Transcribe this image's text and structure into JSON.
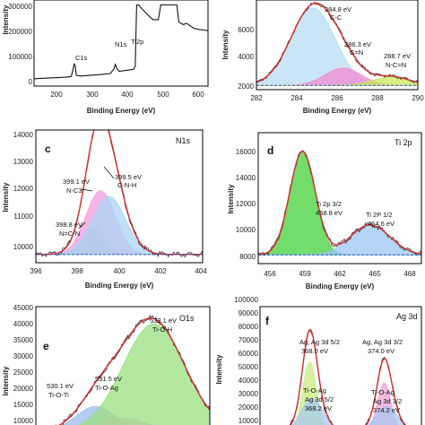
{
  "figure": {
    "background": "#ffffff"
  },
  "panels": [
    {
      "id": "a",
      "letter": "",
      "title": "",
      "xlabel": "Binding Energy (eV)",
      "ylabel": "Intensity",
      "xlim": [
        170,
        660
      ],
      "ylim": [
        -30000,
        320000
      ],
      "xreverse": false,
      "xticks": [
        "200",
        "300",
        "400",
        "500",
        "600"
      ],
      "yticks": [
        "0",
        "100000",
        "200000",
        "300000"
      ],
      "annotations": [
        "C1s",
        "N1s",
        "Ti2p"
      ]
    },
    {
      "id": "b",
      "letter": "",
      "title": "",
      "xlabel": "Binding Energy (eV)",
      "ylabel": "Intensity",
      "xlim": [
        282,
        290
      ],
      "ylim": [
        1700,
        9000
      ],
      "xreverse": false,
      "xticks": [
        "282",
        "284",
        "286",
        "288",
        "290"
      ],
      "yticks": [
        "2000",
        "4000",
        "6000"
      ],
      "annotations": [
        "284.8 eV",
        "C-C",
        "286.3 eV",
        "C=N",
        "288.7 eV",
        "N-C=N"
      ]
    },
    {
      "id": "c",
      "letter": "c",
      "title": "N1s",
      "xlabel": "Binding Energy (eV)",
      "ylabel": "Intensity",
      "xlim": [
        396,
        404
      ],
      "ylim": [
        9700,
        14500
      ],
      "xreverse": false,
      "xticks": [
        "396",
        "398",
        "400",
        "402",
        "404"
      ],
      "yticks": [
        "10000",
        "11000",
        "12000",
        "13000",
        "14000"
      ],
      "annotations": [
        "399.1 eV",
        "N-C3",
        "399.5 eV",
        "C-N-H",
        "398.8 eV",
        "N=C-N"
      ]
    },
    {
      "id": "d",
      "letter": "d",
      "title": "Ti 2p",
      "xlabel": "Binding Energy (eV)",
      "ylabel": "Intensity",
      "xlim": [
        455,
        469
      ],
      "ylim": [
        7000,
        17500
      ],
      "xreverse": false,
      "xticks": [
        "456",
        "459",
        "462",
        "465",
        "468"
      ],
      "yticks": [
        "8000",
        "10000",
        "12000",
        "14000",
        "16000"
      ],
      "annotations": [
        "Ti 2p 3/2",
        "458.8 eV",
        "Ti 2P 1/2",
        "464.6 eV"
      ]
    },
    {
      "id": "e",
      "letter": "e",
      "title": "O1s",
      "xlabel": "",
      "ylabel": "Intensity",
      "xlim": [
        527,
        536
      ],
      "ylim": [
        9500,
        46000
      ],
      "xreverse": false,
      "xticks": [],
      "yticks": [
        "10000",
        "15000",
        "20000",
        "25000",
        "30000",
        "35000",
        "40000",
        "45000"
      ],
      "annotations": [
        "533.1 eV",
        "Ti-O-H",
        "531.5 eV",
        "Ti-O-Ag",
        "530.1 eV",
        "Ti-O-Ti"
      ]
    },
    {
      "id": "f",
      "letter": "f",
      "title": "Ag 3d",
      "xlabel": "",
      "ylabel": "Intensity",
      "xlim": [
        364,
        377
      ],
      "ylim": [
        9500,
        100000
      ],
      "xreverse": false,
      "xticks": [],
      "yticks": [
        "10000",
        "20000",
        "30000",
        "40000",
        "50000",
        "60000",
        "70000",
        "80000",
        "90000",
        "100000"
      ],
      "annotations": [
        "Ag, Ag 3d 5/2",
        "368.0 eV",
        "Ag, Ag 3d 3/2",
        "374.0 eV",
        "Ti-O-Ag",
        "Ag 3d 5/2",
        "368.2 eV",
        "Ti-O-Ag",
        "Ag 3d 3/2",
        "374.2 eV"
      ]
    }
  ],
  "chart_data": [
    {
      "type": "line",
      "panel": "a",
      "title": "",
      "xlabel": "Binding Energy (eV)",
      "ylabel": "Intensity",
      "xlim": [
        170,
        660
      ],
      "ylim": [
        -30000,
        320000
      ],
      "series": [
        {
          "x": [
            170,
            200,
            230,
            260,
            275,
            283,
            286,
            289,
            300,
            330,
            360,
            385,
            395,
            399,
            403,
            410,
            430,
            450,
            455,
            459,
            462,
            465,
            470,
            490,
            505,
            520,
            527,
            530,
            533,
            540,
            548,
            558,
            563,
            568,
            572,
            578,
            590,
            600,
            610,
            620,
            635,
            650,
            660
          ],
          "y": [
            0,
            2000,
            4000,
            6000,
            9000,
            60000,
            52000,
            14000,
            11000,
            14000,
            17000,
            21000,
            40000,
            58000,
            42000,
            30000,
            34000,
            38000,
            50000,
            300000,
            300000,
            300000,
            290000,
            260000,
            240000,
            240000,
            300000,
            300000,
            300000,
            300000,
            300000,
            300000,
            300000,
            300000,
            300000,
            230000,
            220000,
            225000,
            215000,
            205000,
            200000,
            198000,
            195000
          ]
        }
      ]
    },
    {
      "type": "line",
      "panel": "b",
      "title": "",
      "xlabel": "Binding Energy (eV)",
      "ylabel": "Intensity",
      "xlim": [
        282,
        290
      ],
      "components": [
        {
          "center": 284.8,
          "height": 6300,
          "width": 1.1,
          "color": "#b8dcf2"
        },
        {
          "center": 286.3,
          "height": 1400,
          "width": 0.9,
          "color": "#f28ad0"
        },
        {
          "center": 288.7,
          "height": 700,
          "width": 0.9,
          "color": "#c8e85a"
        }
      ],
      "baseline": 2050
    },
    {
      "type": "line",
      "panel": "c",
      "title": "N1s",
      "xlabel": "Binding Energy (eV)",
      "ylabel": "Intensity",
      "xlim": [
        396,
        404
      ],
      "components": [
        {
          "center": 398.8,
          "height": 1000,
          "width": 0.5,
          "color": "#7de08a"
        },
        {
          "center": 399.1,
          "height": 2300,
          "width": 0.7,
          "color": "#f19be0"
        },
        {
          "center": 399.5,
          "height": 2100,
          "width": 0.8,
          "color": "#a9d5f5"
        }
      ],
      "baseline": 10000
    },
    {
      "type": "line",
      "panel": "d",
      "title": "Ti 2p",
      "xlabel": "Binding Energy (eV)",
      "ylabel": "Intensity",
      "xlim": [
        455,
        469
      ],
      "components": [
        {
          "center": 458.8,
          "height": 8300,
          "width": 1.1,
          "color": "#44d13a"
        },
        {
          "center": 464.6,
          "height": 2400,
          "width": 1.7,
          "color": "#9dc6f2"
        }
      ],
      "baseline": 7700
    },
    {
      "type": "line",
      "panel": "e",
      "title": "O1s",
      "xlabel": "",
      "ylabel": "Intensity",
      "xlim": [
        527,
        536
      ],
      "components": [
        {
          "center": 530.1,
          "height": 7000,
          "width": 1.0,
          "color": "#9cbbee"
        },
        {
          "center": 531.5,
          "height": 3500,
          "width": 1.2,
          "color": "#f0a2d5"
        },
        {
          "center": 533.1,
          "height": 31000,
          "width": 1.6,
          "color": "#9ae080"
        }
      ],
      "baseline": 10000
    },
    {
      "type": "line",
      "panel": "f",
      "title": "Ag 3d",
      "xlabel": "",
      "ylabel": "Intensity",
      "xlim": [
        364,
        377
      ],
      "components": [
        {
          "center": 368.0,
          "height": 50000,
          "width": 0.55,
          "color": "#c8ec80"
        },
        {
          "center": 368.2,
          "height": 24000,
          "width": 0.9,
          "color": "#a8c8f0"
        },
        {
          "center": 374.0,
          "height": 35000,
          "width": 0.55,
          "color": "#f0a2d5"
        },
        {
          "center": 374.2,
          "height": 18000,
          "width": 0.9,
          "color": "#a8c8f0"
        }
      ],
      "baseline": 10000
    }
  ]
}
